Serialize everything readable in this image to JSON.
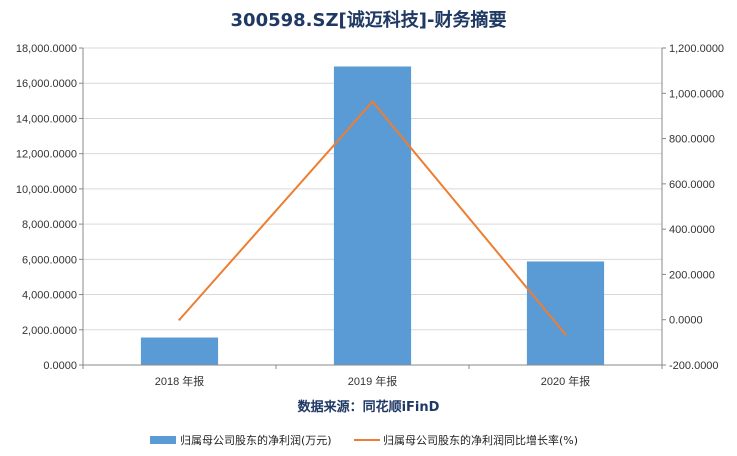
{
  "title": "300598.SZ[诚迈科技]-财务摘要",
  "source": "数据来源：同花顺iFinD",
  "colors": {
    "bar": "#5b9bd5",
    "line": "#ed7d31",
    "axis": "#888888",
    "grid": "#d9d9d9",
    "title": "#1f3864"
  },
  "chart_data": {
    "type": "bar",
    "categories": [
      "2018 年报",
      "2019 年报",
      "2020 年报"
    ],
    "series": [
      {
        "name": "归属母公司股东的净利润(万元)",
        "type": "bar",
        "axis": "left",
        "values": [
          1560,
          16950,
          5880
        ]
      },
      {
        "name": "归属母公司股东的净利润同比增长率(%)",
        "type": "line",
        "axis": "right",
        "values": [
          0.5,
          963,
          -65
        ]
      }
    ],
    "ylim_left": [
      0,
      18000
    ],
    "yticks_left": [
      "0.0000",
      "2,000.0000",
      "4,000.0000",
      "6,000.0000",
      "8,000.0000",
      "10,000.0000",
      "12,000.0000",
      "14,000.0000",
      "16,000.0000",
      "18,000.0000"
    ],
    "ylim_right": [
      -200,
      1200
    ],
    "yticks_right": [
      "-200.0000",
      "0.0000",
      "200.0000",
      "400.0000",
      "600.0000",
      "800.0000",
      "1,000.0000",
      "1,200.0000"
    ],
    "grid": true,
    "legend_position": "bottom"
  }
}
